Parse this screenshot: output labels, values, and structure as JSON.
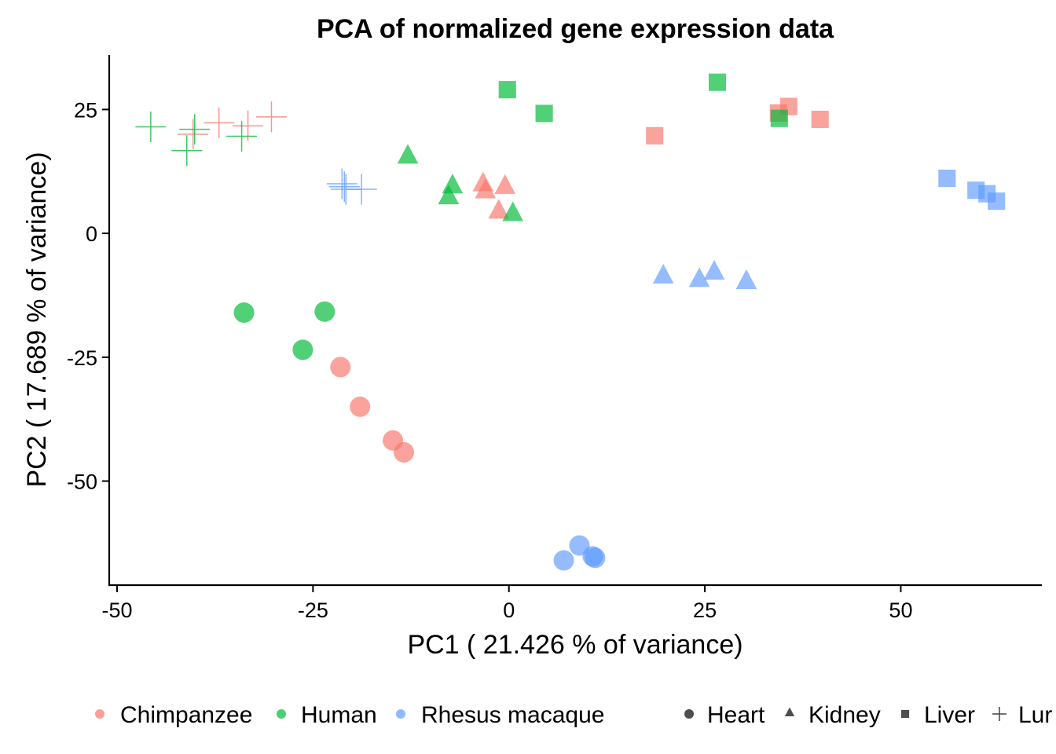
{
  "chart_data": {
    "type": "scatter",
    "title": "PCA of normalized gene expression data",
    "xlabel": "PC1 ( 21.426 % of variance)",
    "ylabel": "PC2 ( 17.689 % of variance)",
    "xlim": [
      -51,
      68
    ],
    "ylim": [
      -71,
      36
    ],
    "xticks": [
      -50,
      -25,
      0,
      25,
      50
    ],
    "xtick_labels": [
      "-50",
      "-25",
      "0",
      "25",
      "50"
    ],
    "yticks": [
      -50,
      -25,
      0,
      25
    ],
    "ytick_labels": [
      "-50",
      "-25",
      "0",
      "25"
    ],
    "grid": false,
    "legend_position": "bottom",
    "species_legend": [
      {
        "name": "Chimpanzee",
        "color": "#F8766D"
      },
      {
        "name": "Human",
        "color": "#00BA38"
      },
      {
        "name": "Rhesus macaque",
        "color": "#619CFF"
      }
    ],
    "tissue_legend": [
      {
        "name": "Heart",
        "shape": "circle"
      },
      {
        "name": "Kidney",
        "shape": "triangle"
      },
      {
        "name": "Liver",
        "shape": "square"
      },
      {
        "name": "Lung",
        "shape": "plus"
      }
    ],
    "points": [
      {
        "x": -21.5,
        "y": -27.0,
        "species": "Chimpanzee",
        "tissue": "Heart"
      },
      {
        "x": -19.0,
        "y": -35.0,
        "species": "Chimpanzee",
        "tissue": "Heart"
      },
      {
        "x": -14.8,
        "y": -41.8,
        "species": "Chimpanzee",
        "tissue": "Heart"
      },
      {
        "x": -13.4,
        "y": -44.2,
        "species": "Chimpanzee",
        "tissue": "Heart"
      },
      {
        "x": -33.8,
        "y": -16.0,
        "species": "Human",
        "tissue": "Heart"
      },
      {
        "x": -23.5,
        "y": -15.8,
        "species": "Human",
        "tissue": "Heart"
      },
      {
        "x": -26.3,
        "y": -23.5,
        "species": "Human",
        "tissue": "Heart"
      },
      {
        "x": 7.0,
        "y": -66.0,
        "species": "Rhesus macaque",
        "tissue": "Heart"
      },
      {
        "x": 9.0,
        "y": -63.0,
        "species": "Rhesus macaque",
        "tissue": "Heart"
      },
      {
        "x": 10.7,
        "y": -65.2,
        "species": "Rhesus macaque",
        "tissue": "Heart"
      },
      {
        "x": 11.0,
        "y": -65.5,
        "species": "Rhesus macaque",
        "tissue": "Heart"
      },
      {
        "x": -3.3,
        "y": 10.2,
        "species": "Chimpanzee",
        "tissue": "Kidney"
      },
      {
        "x": -3.0,
        "y": 8.8,
        "species": "Chimpanzee",
        "tissue": "Kidney"
      },
      {
        "x": -0.5,
        "y": 9.7,
        "species": "Chimpanzee",
        "tissue": "Kidney"
      },
      {
        "x": -1.3,
        "y": 4.7,
        "species": "Chimpanzee",
        "tissue": "Kidney"
      },
      {
        "x": -12.9,
        "y": 15.8,
        "species": "Human",
        "tissue": "Kidney"
      },
      {
        "x": -7.2,
        "y": 9.8,
        "species": "Human",
        "tissue": "Kidney"
      },
      {
        "x": -7.7,
        "y": 7.6,
        "species": "Human",
        "tissue": "Kidney"
      },
      {
        "x": 0.5,
        "y": 4.2,
        "species": "Human",
        "tissue": "Kidney"
      },
      {
        "x": 19.7,
        "y": -8.4,
        "species": "Rhesus macaque",
        "tissue": "Kidney"
      },
      {
        "x": 24.3,
        "y": -9.1,
        "species": "Rhesus macaque",
        "tissue": "Kidney"
      },
      {
        "x": 26.2,
        "y": -7.6,
        "species": "Rhesus macaque",
        "tissue": "Kidney"
      },
      {
        "x": 30.3,
        "y": -9.5,
        "species": "Rhesus macaque",
        "tissue": "Kidney"
      },
      {
        "x": 18.6,
        "y": 19.7,
        "species": "Chimpanzee",
        "tissue": "Liver"
      },
      {
        "x": 34.4,
        "y": 24.3,
        "species": "Chimpanzee",
        "tissue": "Liver"
      },
      {
        "x": 35.7,
        "y": 25.6,
        "species": "Chimpanzee",
        "tissue": "Liver"
      },
      {
        "x": 39.7,
        "y": 23.0,
        "species": "Chimpanzee",
        "tissue": "Liver"
      },
      {
        "x": -0.2,
        "y": 29.0,
        "species": "Human",
        "tissue": "Liver"
      },
      {
        "x": 4.5,
        "y": 24.2,
        "species": "Human",
        "tissue": "Liver"
      },
      {
        "x": 26.6,
        "y": 30.5,
        "species": "Human",
        "tissue": "Liver"
      },
      {
        "x": 34.5,
        "y": 23.2,
        "species": "Human",
        "tissue": "Liver"
      },
      {
        "x": 55.9,
        "y": 11.1,
        "species": "Rhesus macaque",
        "tissue": "Liver"
      },
      {
        "x": 59.6,
        "y": 8.7,
        "species": "Rhesus macaque",
        "tissue": "Liver"
      },
      {
        "x": 61.0,
        "y": 8.0,
        "species": "Rhesus macaque",
        "tissue": "Liver"
      },
      {
        "x": 62.2,
        "y": 6.5,
        "species": "Rhesus macaque",
        "tissue": "Liver"
      },
      {
        "x": -40.3,
        "y": 20.0,
        "species": "Chimpanzee",
        "tissue": "Lung"
      },
      {
        "x": -37.0,
        "y": 22.3,
        "species": "Chimpanzee",
        "tissue": "Lung"
      },
      {
        "x": -33.3,
        "y": 21.7,
        "species": "Chimpanzee",
        "tissue": "Lung"
      },
      {
        "x": -30.3,
        "y": 23.5,
        "species": "Chimpanzee",
        "tissue": "Lung"
      },
      {
        "x": -45.7,
        "y": 21.5,
        "species": "Human",
        "tissue": "Lung"
      },
      {
        "x": -41.1,
        "y": 16.7,
        "species": "Human",
        "tissue": "Lung"
      },
      {
        "x": -40.1,
        "y": 21.0,
        "species": "Human",
        "tissue": "Lung"
      },
      {
        "x": -34.1,
        "y": 19.6,
        "species": "Human",
        "tissue": "Lung"
      },
      {
        "x": -21.3,
        "y": 10.0,
        "species": "Rhesus macaque",
        "tissue": "Lung"
      },
      {
        "x": -20.8,
        "y": 8.9,
        "species": "Rhesus macaque",
        "tissue": "Lung"
      },
      {
        "x": -18.8,
        "y": 8.9,
        "species": "Rhesus macaque",
        "tissue": "Lung"
      },
      {
        "x": -21.0,
        "y": 9.4,
        "species": "Rhesus macaque",
        "tissue": "Lung"
      }
    ]
  },
  "legend_tissue_last_visible": "Lur"
}
